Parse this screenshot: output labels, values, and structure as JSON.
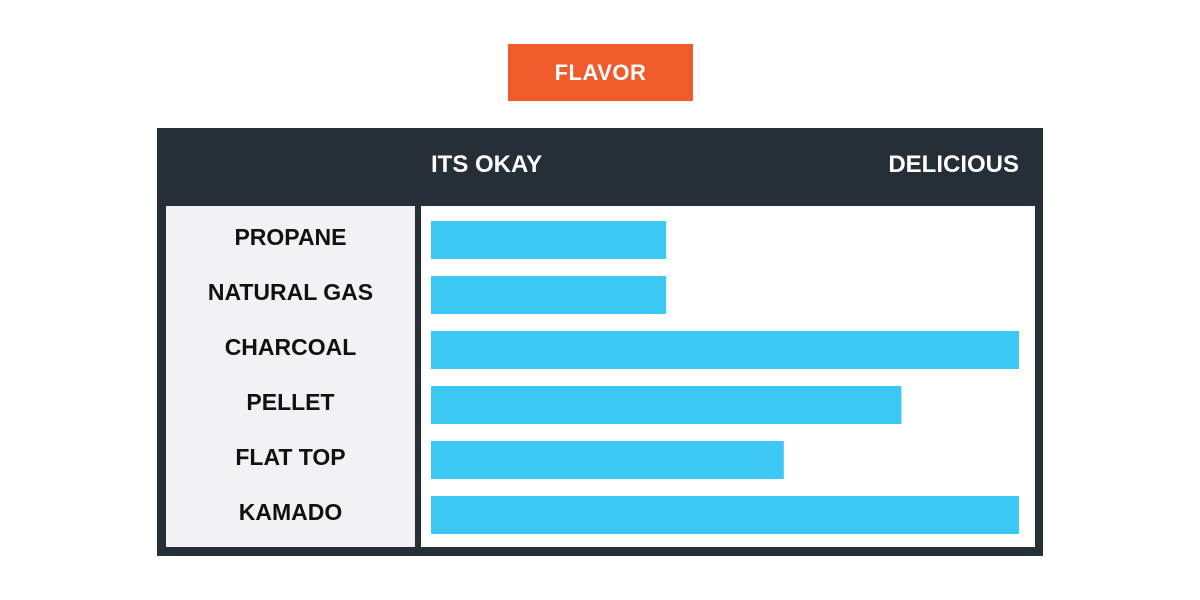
{
  "chart_data": {
    "type": "bar",
    "orientation": "horizontal",
    "title": "FLAVOR",
    "scale_min_label": "ITS OKAY",
    "scale_max_label": "DELICIOUS",
    "categories": [
      "PROPANE",
      "NATURAL GAS",
      "CHARCOAL",
      "PELLET",
      "FLAT TOP",
      "KAMADO"
    ],
    "values": [
      0.4,
      0.4,
      1.0,
      0.8,
      0.6,
      1.0
    ],
    "xlim": [
      0,
      1
    ],
    "grid": false,
    "legend": "none",
    "colors": {
      "title_bg": "#f15a2b",
      "frame": "#262e36",
      "bar": "#3cc8f4",
      "label_panel": "#f2f2f4"
    }
  }
}
